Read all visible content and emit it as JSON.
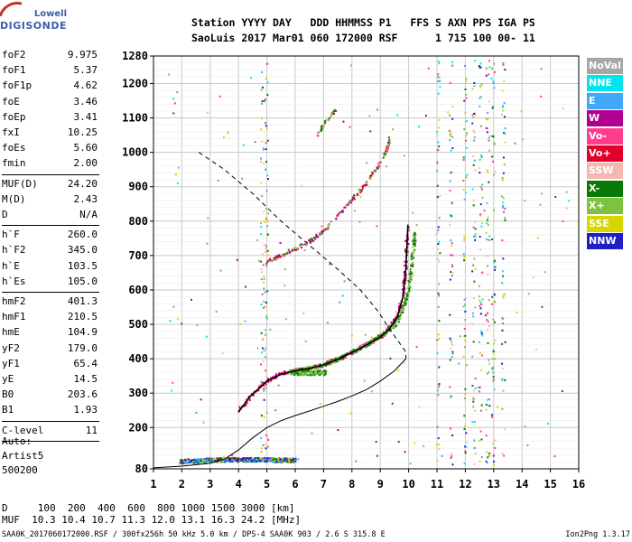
{
  "logo": {
    "line1": "Lowell",
    "line2": "DIGISONDE"
  },
  "header": {
    "row1": "Station YYYY DAY   DDD HHMMSS P1   FFS S AXN PPS IGA PS",
    "row2": "SaoLuis 2017 Mar01 060 172000 RSF      1 715 100 00- 11"
  },
  "params": [
    {
      "k": "foF2",
      "v": "9.975"
    },
    {
      "k": "foF1",
      "v": "5.37"
    },
    {
      "k": "foF1p",
      "v": "4.62"
    },
    {
      "k": "foE",
      "v": "3.46"
    },
    {
      "k": "foEp",
      "v": "3.41"
    },
    {
      "k": "fxI",
      "v": "10.25"
    },
    {
      "k": "foEs",
      "v": "5.60"
    },
    {
      "k": "fmin",
      "v": "2.00"
    },
    {
      "k": "MUF(D)",
      "v": "24.20"
    },
    {
      "k": "M(D)",
      "v": "2.43"
    },
    {
      "k": "D",
      "v": "N/A"
    },
    {
      "k": "h`F",
      "v": "260.0"
    },
    {
      "k": "h`F2",
      "v": "345.0"
    },
    {
      "k": "h`E",
      "v": "103.5"
    },
    {
      "k": "h`Es",
      "v": "105.0"
    },
    {
      "k": "hmF2",
      "v": "401.3"
    },
    {
      "k": "hmF1",
      "v": "210.5"
    },
    {
      "k": "hmE",
      "v": "104.9"
    },
    {
      "k": "yF2",
      "v": "179.0"
    },
    {
      "k": "yF1",
      "v": "65.4"
    },
    {
      "k": "yE",
      "v": "14.5"
    },
    {
      "k": "B0",
      "v": "203.6"
    },
    {
      "k": "B1",
      "v": "1.93"
    },
    {
      "k": "C-level",
      "v": "11"
    }
  ],
  "auto": {
    "l1": "Auto:",
    "l2": "Artist5",
    "l3": "500200"
  },
  "legend": [
    {
      "label": "NoVal",
      "color": "#a6a6a6",
      "text": "#ffffff"
    },
    {
      "label": "NNE",
      "color": "#00e5ee",
      "text": "#ffffff"
    },
    {
      "label": "E",
      "color": "#3fa9f5",
      "text": "#ffffff"
    },
    {
      "label": "W",
      "color": "#b0008f",
      "text": "#ffffff"
    },
    {
      "label": "Vo-",
      "color": "#ff3c8e",
      "text": "#ffffff"
    },
    {
      "label": "Vo+",
      "color": "#e0002a",
      "text": "#ffffff"
    },
    {
      "label": "SSW",
      "color": "#f4b8b0",
      "text": "#ffffff"
    },
    {
      "label": "X-",
      "color": "#087a08",
      "text": "#ffffff"
    },
    {
      "label": "X+",
      "color": "#7fc241",
      "text": "#ffffff"
    },
    {
      "label": "SSE",
      "color": "#d6d600",
      "text": "#ffffff"
    },
    {
      "label": "NNW",
      "color": "#1f1fc8",
      "text": "#ffffff"
    }
  ],
  "muf_table": {
    "row1": "D     100  200  400  600  800 1000 1500 3000 [km]",
    "row2": "MUF  10.3 10.4 10.7 11.3 12.0 13.1 16.3 24.2 [MHz]"
  },
  "footer": {
    "left": "SAA0K_2017060172000.RSF / 300fx256h 50 kHz 5.0 km / DPS-4 SAA0K 903 / 2.6 S 315.8 E",
    "right": "Ion2Png 1.3.17"
  },
  "chart_data": {
    "type": "scatter",
    "xlabel": "",
    "ylabel": "",
    "xlim": [
      1,
      16
    ],
    "ylim": [
      80,
      1280
    ],
    "x_ticks": [
      1,
      2,
      3,
      4,
      5,
      6,
      7,
      8,
      9,
      10,
      11,
      12,
      13,
      14,
      15,
      16
    ],
    "y_ticks": [
      80,
      200,
      300,
      400,
      500,
      600,
      700,
      800,
      900,
      1000,
      1100,
      1200,
      1280
    ],
    "trace_O": [
      [
        4.0,
        245
      ],
      [
        4.4,
        290
      ],
      [
        5.0,
        335
      ],
      [
        5.5,
        355
      ],
      [
        6.0,
        365
      ],
      [
        6.5,
        372
      ],
      [
        7.0,
        382
      ],
      [
        7.5,
        398
      ],
      [
        8.0,
        418
      ],
      [
        8.5,
        440
      ],
      [
        9.0,
        462
      ],
      [
        9.3,
        485
      ],
      [
        9.6,
        520
      ],
      [
        9.8,
        580
      ],
      [
        9.9,
        660
      ],
      [
        9.975,
        790
      ]
    ],
    "trace_X_F2": [
      [
        5.8,
        360
      ],
      [
        6.5,
        372
      ],
      [
        7.0,
        382
      ],
      [
        7.5,
        398
      ],
      [
        8.0,
        418
      ],
      [
        8.5,
        440
      ],
      [
        9.0,
        465
      ],
      [
        9.5,
        495
      ],
      [
        9.8,
        540
      ],
      [
        10.0,
        600
      ],
      [
        10.15,
        700
      ],
      [
        10.25,
        780
      ]
    ],
    "trace_2F": [
      [
        5.0,
        680
      ],
      [
        5.5,
        700
      ],
      [
        6.0,
        720
      ],
      [
        6.5,
        740
      ],
      [
        7.0,
        770
      ],
      [
        7.5,
        815
      ],
      [
        8.0,
        860
      ],
      [
        8.5,
        910
      ],
      [
        8.9,
        955
      ],
      [
        9.2,
        1000
      ],
      [
        9.35,
        1040
      ]
    ],
    "trace_3F": [
      [
        6.8,
        1050
      ],
      [
        7.0,
        1080
      ],
      [
        7.3,
        1110
      ],
      [
        7.5,
        1135
      ]
    ],
    "trace_Es": [
      [
        2.0,
        100
      ],
      [
        2.5,
        103
      ],
      [
        3.0,
        105
      ],
      [
        3.5,
        106
      ],
      [
        4.0,
        106
      ],
      [
        4.5,
        106
      ],
      [
        5.0,
        106
      ],
      [
        5.5,
        105
      ],
      [
        6.0,
        104
      ]
    ],
    "profile_solid": [
      [
        1,
        83
      ],
      [
        2,
        88
      ],
      [
        3,
        96
      ],
      [
        3.5,
        108
      ],
      [
        4,
        135
      ],
      [
        4.5,
        170
      ],
      [
        5,
        200
      ],
      [
        5.5,
        220
      ],
      [
        6,
        235
      ],
      [
        6.5,
        248
      ],
      [
        7,
        262
      ],
      [
        7.5,
        276
      ],
      [
        8,
        292
      ],
      [
        8.5,
        310
      ],
      [
        9,
        335
      ],
      [
        9.5,
        365
      ],
      [
        9.9,
        400
      ]
    ],
    "profile_dashed": [
      [
        2.6,
        1000
      ],
      [
        3.5,
        950
      ],
      [
        4.5,
        880
      ],
      [
        5.5,
        800
      ],
      [
        6.5,
        730
      ],
      [
        7.5,
        660
      ],
      [
        8.3,
        600
      ],
      [
        8.9,
        540
      ],
      [
        9.3,
        490
      ],
      [
        9.9,
        420
      ],
      [
        9.9,
        400
      ]
    ]
  }
}
